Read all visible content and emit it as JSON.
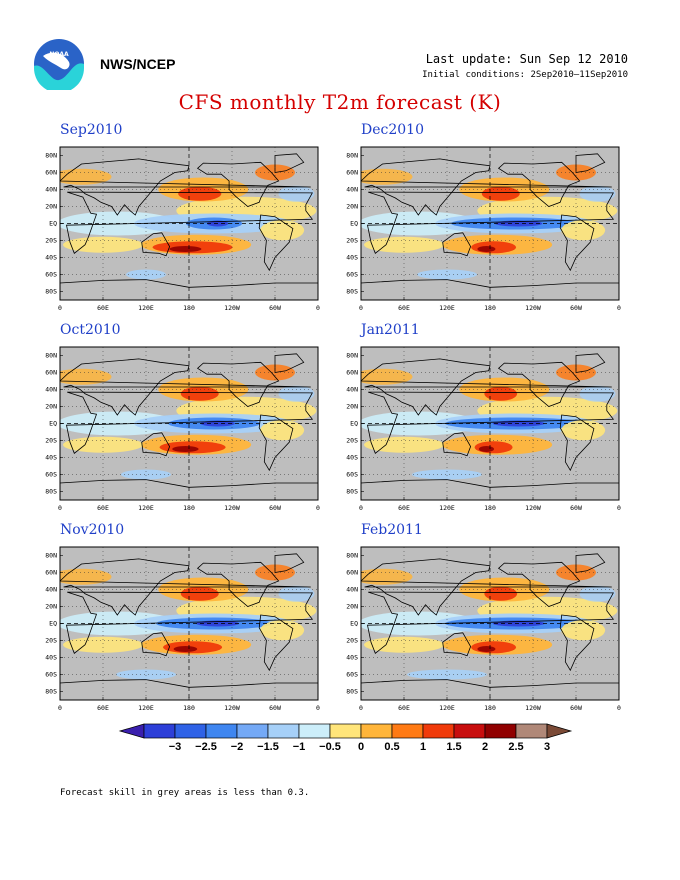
{
  "header": {
    "org": "NWS/NCEP",
    "last_update": "Last update: Sun Sep 12 2010",
    "initial_conditions": "Initial conditions: 2Sep2010–11Sep2010",
    "title": "CFS monthly T2m forecast (K)",
    "logo_icon": "noaa-logo-icon"
  },
  "panels": [
    {
      "label": "Sep2010",
      "pattern": [
        0.6,
        0.3,
        1.0,
        0.2
      ]
    },
    {
      "label": "Dec2010",
      "pattern": [
        0.5,
        0.9,
        0.5,
        0.4
      ]
    },
    {
      "label": "Oct2010",
      "pattern": [
        0.5,
        0.6,
        0.8,
        0.3
      ]
    },
    {
      "label": "Jan2011",
      "pattern": [
        0.4,
        1.0,
        0.4,
        0.5
      ]
    },
    {
      "label": "Nov2010",
      "pattern": [
        0.5,
        0.8,
        0.7,
        0.4
      ]
    },
    {
      "label": "Feb2011",
      "pattern": [
        0.4,
        1.0,
        0.5,
        0.6
      ]
    }
  ],
  "axes": {
    "lat_labels": [
      "80N",
      "60N",
      "40N",
      "20N",
      "EQ",
      "20S",
      "40S",
      "60S",
      "80S"
    ],
    "lon_labels": [
      "0",
      "60E",
      "120E",
      "180",
      "120W",
      "60W",
      "0"
    ]
  },
  "colorbar": {
    "labels": [
      "−3",
      "−2.5",
      "−2",
      "−1.5",
      "−1",
      "−0.5",
      "0",
      "0.5",
      "1",
      "1.5",
      "2",
      "2.5",
      "3"
    ],
    "colors": [
      "#3a1fae",
      "#2d3fd8",
      "#2f62e6",
      "#3f86f0",
      "#74a9f6",
      "#a6d0f8",
      "#cceefa",
      "#ffe57a",
      "#ffb53a",
      "#ff7a14",
      "#f03a0a",
      "#c80e0e",
      "#900000",
      "#b08878",
      "#7b4a36"
    ]
  },
  "footer": {
    "note": "Forecast skill in grey areas is less than 0.3."
  }
}
